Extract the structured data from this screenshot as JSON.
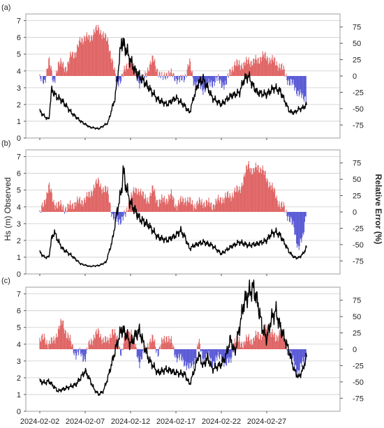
{
  "figure": {
    "left_axis_label": "Hs (m) Observed",
    "right_axis_label": "Relative Error (%)",
    "x_ticks": [
      "2024-02-02",
      "2024-02-07",
      "2024-02-12",
      "2024-02-17",
      "2024-02-22",
      "2024-02-27"
    ],
    "colors": {
      "observed": "#000000",
      "positive_error": "#e06666",
      "negative_error": "#5b5bd6",
      "grid": "#cccccc",
      "frame": "#9e9e9e"
    }
  },
  "chart_data": [
    {
      "type": "line",
      "panel_label": "(a)",
      "x_range": [
        "2024-02-02",
        "2024-03-01"
      ],
      "left_ylim": [
        0,
        7.4
      ],
      "left_ticks": [
        0,
        1,
        2,
        3,
        4,
        5,
        6,
        7
      ],
      "right_ylim": [
        -95,
        95
      ],
      "right_ticks": [
        75,
        50,
        25,
        0,
        -25,
        -50,
        -75
      ],
      "grid": "horizontal",
      "observed_hs": [
        [
          0,
          1.6
        ],
        [
          0.5,
          1.3
        ],
        [
          1.0,
          1.1
        ],
        [
          1.3,
          2.9
        ],
        [
          1.8,
          2.5
        ],
        [
          2.5,
          2.2
        ],
        [
          3.5,
          1.5
        ],
        [
          4.5,
          1.0
        ],
        [
          5.5,
          0.65
        ],
        [
          6.5,
          0.55
        ],
        [
          7.5,
          0.9
        ],
        [
          8.3,
          2.4
        ],
        [
          8.8,
          4.8
        ],
        [
          9.0,
          5.8
        ],
        [
          9.5,
          5.3
        ],
        [
          10.0,
          4.6
        ],
        [
          10.5,
          4.0
        ],
        [
          11.0,
          3.7
        ],
        [
          12.0,
          3.0
        ],
        [
          13.0,
          2.3
        ],
        [
          14.0,
          2.0
        ],
        [
          15.0,
          2.4
        ],
        [
          16.0,
          1.9
        ],
        [
          16.5,
          1.5
        ],
        [
          17.0,
          2.5
        ],
        [
          17.5,
          3.3
        ],
        [
          18.0,
          3.5
        ],
        [
          18.5,
          3.0
        ],
        [
          19.0,
          2.4
        ],
        [
          20.0,
          2.0
        ],
        [
          21.0,
          2.5
        ],
        [
          22.0,
          2.7
        ],
        [
          22.5,
          3.5
        ],
        [
          23.0,
          3.7
        ],
        [
          23.5,
          3.1
        ],
        [
          24.0,
          2.7
        ],
        [
          25.0,
          2.6
        ],
        [
          25.8,
          3.0
        ],
        [
          26.5,
          2.8
        ],
        [
          27.0,
          2.2
        ],
        [
          27.5,
          1.6
        ],
        [
          28.0,
          1.5
        ],
        [
          28.5,
          1.7
        ],
        [
          29.0,
          1.8
        ],
        [
          29.4,
          2.0
        ]
      ],
      "relative_error_pct": [
        [
          0,
          -5
        ],
        [
          0.5,
          -10
        ],
        [
          1.0,
          25
        ],
        [
          1.5,
          -10
        ],
        [
          2.0,
          15
        ],
        [
          2.5,
          20
        ],
        [
          3.0,
          10
        ],
        [
          3.5,
          35
        ],
        [
          4.0,
          35
        ],
        [
          4.5,
          55
        ],
        [
          5.0,
          60
        ],
        [
          5.5,
          55
        ],
        [
          6.0,
          70
        ],
        [
          6.5,
          70
        ],
        [
          7.0,
          65
        ],
        [
          7.5,
          50
        ],
        [
          8.0,
          25
        ],
        [
          8.5,
          -15
        ],
        [
          9.0,
          0
        ],
        [
          9.5,
          10
        ],
        [
          10.0,
          25
        ],
        [
          10.5,
          5
        ],
        [
          11.0,
          -10
        ],
        [
          11.5,
          -5
        ],
        [
          12.0,
          15
        ],
        [
          12.5,
          25
        ],
        [
          13.0,
          8
        ],
        [
          13.5,
          -5
        ],
        [
          14.0,
          5
        ],
        [
          15.0,
          -2
        ],
        [
          15.5,
          -8
        ],
        [
          16.0,
          0
        ],
        [
          16.5,
          20
        ],
        [
          17.0,
          -10
        ],
        [
          17.5,
          -15
        ],
        [
          18.0,
          -20
        ],
        [
          18.5,
          -15
        ],
        [
          19.0,
          -10
        ],
        [
          19.5,
          -5
        ],
        [
          20.0,
          -10
        ],
        [
          20.5,
          -15
        ],
        [
          21.0,
          10
        ],
        [
          21.5,
          15
        ],
        [
          22.0,
          20
        ],
        [
          22.5,
          15
        ],
        [
          23.0,
          25
        ],
        [
          23.5,
          20
        ],
        [
          24.0,
          25
        ],
        [
          24.5,
          30
        ],
        [
          25.0,
          28
        ],
        [
          25.5,
          25
        ],
        [
          26.0,
          20
        ],
        [
          26.5,
          15
        ],
        [
          27.0,
          5
        ],
        [
          27.5,
          -10
        ],
        [
          28.0,
          -15
        ],
        [
          28.5,
          -25
        ],
        [
          29.0,
          -35
        ],
        [
          29.4,
          -30
        ]
      ]
    },
    {
      "type": "line",
      "panel_label": "(b)",
      "x_range": [
        "2024-02-02",
        "2024-03-01"
      ],
      "left_ylim": [
        0,
        7.4
      ],
      "left_ticks": [
        0,
        1,
        2,
        3,
        4,
        5,
        6,
        7
      ],
      "right_ylim": [
        -95,
        95
      ],
      "right_ticks": [
        75,
        50,
        25,
        0,
        -25,
        -50,
        -75
      ],
      "grid": "horizontal",
      "observed_hs": [
        [
          0,
          1.3
        ],
        [
          0.5,
          1.0
        ],
        [
          1.0,
          1.0
        ],
        [
          1.3,
          2.1
        ],
        [
          1.6,
          2.5
        ],
        [
          2.0,
          2.0
        ],
        [
          2.5,
          1.5
        ],
        [
          3.5,
          1.1
        ],
        [
          4.5,
          0.6
        ],
        [
          5.5,
          0.45
        ],
        [
          6.5,
          0.5
        ],
        [
          7.3,
          0.7
        ],
        [
          8.0,
          2.0
        ],
        [
          8.5,
          3.7
        ],
        [
          9.0,
          5.0
        ],
        [
          9.2,
          6.2
        ],
        [
          9.5,
          5.2
        ],
        [
          10.0,
          4.2
        ],
        [
          10.5,
          3.8
        ],
        [
          11.0,
          3.3
        ],
        [
          12.0,
          2.9
        ],
        [
          13.0,
          2.2
        ],
        [
          14.0,
          2.0
        ],
        [
          15.0,
          2.3
        ],
        [
          15.5,
          2.6
        ],
        [
          16.0,
          2.2
        ],
        [
          16.5,
          1.5
        ],
        [
          17.0,
          1.7
        ],
        [
          18.0,
          1.9
        ],
        [
          19.0,
          1.7
        ],
        [
          20.0,
          1.2
        ],
        [
          21.0,
          1.6
        ],
        [
          22.0,
          1.9
        ],
        [
          23.0,
          1.7
        ],
        [
          24.0,
          1.8
        ],
        [
          25.0,
          2.0
        ],
        [
          25.5,
          2.4
        ],
        [
          26.0,
          2.5
        ],
        [
          26.5,
          2.3
        ],
        [
          27.0,
          1.8
        ],
        [
          27.5,
          1.3
        ],
        [
          28.0,
          1.0
        ],
        [
          28.5,
          0.95
        ],
        [
          29.0,
          1.2
        ],
        [
          29.4,
          1.6
        ]
      ],
      "relative_error_pct": [
        [
          0,
          -5
        ],
        [
          0.5,
          15
        ],
        [
          1.0,
          40
        ],
        [
          1.5,
          15
        ],
        [
          2.0,
          10
        ],
        [
          2.5,
          8
        ],
        [
          3.0,
          5
        ],
        [
          3.5,
          10
        ],
        [
          4.0,
          15
        ],
        [
          4.5,
          15
        ],
        [
          5.0,
          20
        ],
        [
          5.5,
          25
        ],
        [
          6.0,
          40
        ],
        [
          6.5,
          45
        ],
        [
          7.0,
          35
        ],
        [
          7.5,
          30
        ],
        [
          8.0,
          -5
        ],
        [
          8.5,
          -15
        ],
        [
          9.0,
          -10
        ],
        [
          9.5,
          -5
        ],
        [
          10.0,
          25
        ],
        [
          10.5,
          30
        ],
        [
          11.0,
          35
        ],
        [
          11.5,
          20
        ],
        [
          12.0,
          20
        ],
        [
          12.5,
          35
        ],
        [
          13.0,
          15
        ],
        [
          14.0,
          20
        ],
        [
          14.5,
          25
        ],
        [
          15.0,
          10
        ],
        [
          16.0,
          20
        ],
        [
          17.0,
          10
        ],
        [
          18.0,
          15
        ],
        [
          19.0,
          10
        ],
        [
          20.0,
          20
        ],
        [
          21.0,
          25
        ],
        [
          22.0,
          35
        ],
        [
          22.5,
          50
        ],
        [
          23.0,
          75
        ],
        [
          23.5,
          60
        ],
        [
          24.0,
          70
        ],
        [
          24.5,
          65
        ],
        [
          25.0,
          50
        ],
        [
          25.5,
          40
        ],
        [
          26.0,
          25
        ],
        [
          26.5,
          10
        ],
        [
          27.0,
          5
        ],
        [
          27.5,
          -10
        ],
        [
          28.0,
          -25
        ],
        [
          28.5,
          -55
        ],
        [
          29.0,
          -40
        ],
        [
          29.4,
          10
        ]
      ]
    },
    {
      "type": "line",
      "panel_label": "(c)",
      "x_range": [
        "2024-02-02",
        "2024-03-01"
      ],
      "left_ylim": [
        0,
        7.4
      ],
      "left_ticks": [
        0,
        1,
        2,
        3,
        4,
        5,
        6,
        7
      ],
      "right_ylim": [
        -95,
        95
      ],
      "right_ticks": [
        75,
        50,
        25,
        0,
        -25,
        -50,
        -75
      ],
      "grid": "horizontal",
      "observed_hs": [
        [
          0,
          1.8
        ],
        [
          0.5,
          1.7
        ],
        [
          1.0,
          1.8
        ],
        [
          1.5,
          1.5
        ],
        [
          2.0,
          1.2
        ],
        [
          3.0,
          1.4
        ],
        [
          4.0,
          1.6
        ],
        [
          5.0,
          2.4
        ],
        [
          5.5,
          1.9
        ],
        [
          6.0,
          1.3
        ],
        [
          6.5,
          1.0
        ],
        [
          7.0,
          1.2
        ],
        [
          7.5,
          2.0
        ],
        [
          8.0,
          3.0
        ],
        [
          8.5,
          4.0
        ],
        [
          9.0,
          4.9
        ],
        [
          9.5,
          4.6
        ],
        [
          10.0,
          4.0
        ],
        [
          10.5,
          4.5
        ],
        [
          11.0,
          4.8
        ],
        [
          11.5,
          3.9
        ],
        [
          12.0,
          3.1
        ],
        [
          13.0,
          2.3
        ],
        [
          14.0,
          2.5
        ],
        [
          15.0,
          2.3
        ],
        [
          16.0,
          2.2
        ],
        [
          16.5,
          1.6
        ],
        [
          17.0,
          2.4
        ],
        [
          17.5,
          3.4
        ],
        [
          18.0,
          2.7
        ],
        [
          18.5,
          3.2
        ],
        [
          19.0,
          2.5
        ],
        [
          20.0,
          2.8
        ],
        [
          20.5,
          3.3
        ],
        [
          21.0,
          4.3
        ],
        [
          21.5,
          3.5
        ],
        [
          22.0,
          5.0
        ],
        [
          22.5,
          6.5
        ],
        [
          23.0,
          7.0
        ],
        [
          23.5,
          7.4
        ],
        [
          24.0,
          6.5
        ],
        [
          24.5,
          5.0
        ],
        [
          25.0,
          4.3
        ],
        [
          25.5,
          5.5
        ],
        [
          26.0,
          6.0
        ],
        [
          26.5,
          5.0
        ],
        [
          27.0,
          4.3
        ],
        [
          27.5,
          3.5
        ],
        [
          28.0,
          2.5
        ],
        [
          28.5,
          2.0
        ],
        [
          29.0,
          2.5
        ],
        [
          29.4,
          3.3
        ]
      ],
      "relative_error_pct": [
        [
          0,
          10
        ],
        [
          0.5,
          20
        ],
        [
          1.0,
          5
        ],
        [
          1.5,
          15
        ],
        [
          2.0,
          25
        ],
        [
          2.5,
          45
        ],
        [
          3.0,
          20
        ],
        [
          3.5,
          10
        ],
        [
          4.0,
          -10
        ],
        [
          4.5,
          -5
        ],
        [
          5.0,
          -15
        ],
        [
          5.5,
          10
        ],
        [
          6.0,
          20
        ],
        [
          6.5,
          25
        ],
        [
          7.0,
          15
        ],
        [
          7.5,
          10
        ],
        [
          8.0,
          30
        ],
        [
          8.5,
          15
        ],
        [
          9.0,
          -5
        ],
        [
          9.5,
          20
        ],
        [
          10.0,
          30
        ],
        [
          10.5,
          5
        ],
        [
          11.0,
          -20
        ],
        [
          11.5,
          -5
        ],
        [
          12.0,
          10
        ],
        [
          12.5,
          15
        ],
        [
          13.0,
          -5
        ],
        [
          13.5,
          10
        ],
        [
          14.0,
          20
        ],
        [
          14.5,
          10
        ],
        [
          15.0,
          -10
        ],
        [
          16.0,
          -20
        ],
        [
          16.5,
          -30
        ],
        [
          17.0,
          -20
        ],
        [
          17.5,
          10
        ],
        [
          18.0,
          -15
        ],
        [
          18.5,
          -10
        ],
        [
          19.0,
          -20
        ],
        [
          20.0,
          -10
        ],
        [
          20.5,
          -25
        ],
        [
          21.0,
          -15
        ],
        [
          21.5,
          10
        ],
        [
          22.0,
          15
        ],
        [
          22.5,
          5
        ],
        [
          23.0,
          20
        ],
        [
          23.5,
          10
        ],
        [
          24.0,
          25
        ],
        [
          24.5,
          20
        ],
        [
          25.0,
          35
        ],
        [
          25.5,
          25
        ],
        [
          26.0,
          15
        ],
        [
          26.5,
          30
        ],
        [
          27.0,
          10
        ],
        [
          27.5,
          -5
        ],
        [
          28.0,
          -20
        ],
        [
          28.5,
          -35
        ],
        [
          29.0,
          -20
        ],
        [
          29.4,
          -5
        ]
      ]
    }
  ]
}
